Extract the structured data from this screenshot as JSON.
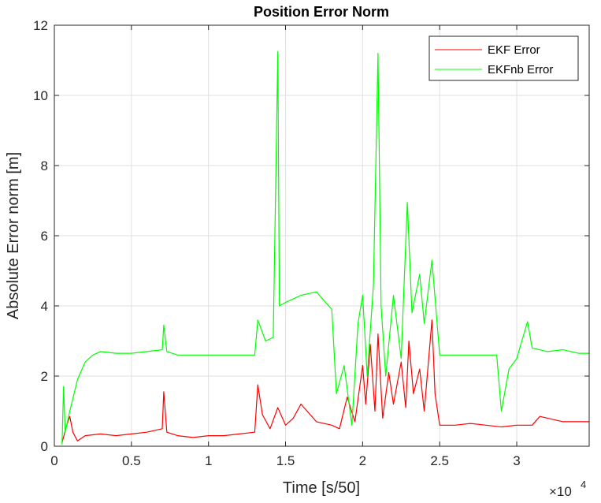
{
  "chart_data": {
    "type": "line",
    "title": "Position Error Norm",
    "xlabel": "Time [s/50]",
    "ylabel": "Absolute Error norm [m]",
    "x_exponent_label": "×10",
    "x_exponent_power": "4",
    "xlim": [
      0,
      34700
    ],
    "ylim": [
      0,
      12
    ],
    "grid": true,
    "legend_position": "top-right",
    "x_ticks": [
      {
        "value": 0,
        "label": "0"
      },
      {
        "value": 5000,
        "label": "0.5"
      },
      {
        "value": 10000,
        "label": "1"
      },
      {
        "value": 15000,
        "label": "1.5"
      },
      {
        "value": 20000,
        "label": "2"
      },
      {
        "value": 25000,
        "label": "2.5"
      },
      {
        "value": 30000,
        "label": "3"
      }
    ],
    "y_ticks": [
      {
        "value": 0,
        "label": "0"
      },
      {
        "value": 2,
        "label": "2"
      },
      {
        "value": 4,
        "label": "4"
      },
      {
        "value": 6,
        "label": "6"
      },
      {
        "value": 8,
        "label": "8"
      },
      {
        "value": 10,
        "label": "10"
      },
      {
        "value": 12,
        "label": "12"
      }
    ],
    "series": [
      {
        "name": "EKF Error",
        "color": "#ff0000",
        "points": [
          [
            500,
            0.1
          ],
          [
            800,
            0.6
          ],
          [
            1000,
            0.85
          ],
          [
            1200,
            0.4
          ],
          [
            1500,
            0.15
          ],
          [
            2000,
            0.3
          ],
          [
            3000,
            0.35
          ],
          [
            4000,
            0.3
          ],
          [
            5000,
            0.35
          ],
          [
            6000,
            0.4
          ],
          [
            7000,
            0.5
          ],
          [
            7100,
            1.55
          ],
          [
            7300,
            0.4
          ],
          [
            8000,
            0.3
          ],
          [
            9000,
            0.25
          ],
          [
            10000,
            0.3
          ],
          [
            11000,
            0.3
          ],
          [
            12000,
            0.35
          ],
          [
            13000,
            0.4
          ],
          [
            13200,
            1.75
          ],
          [
            13500,
            0.9
          ],
          [
            14000,
            0.5
          ],
          [
            14500,
            1.1
          ],
          [
            15000,
            0.6
          ],
          [
            15500,
            0.8
          ],
          [
            16000,
            1.2
          ],
          [
            17000,
            0.7
          ],
          [
            18000,
            0.6
          ],
          [
            18500,
            0.5
          ],
          [
            19000,
            1.4
          ],
          [
            19500,
            0.7
          ],
          [
            20000,
            2.3
          ],
          [
            20200,
            1.2
          ],
          [
            20500,
            2.9
          ],
          [
            20800,
            1.0
          ],
          [
            21000,
            3.2
          ],
          [
            21300,
            0.8
          ],
          [
            21700,
            2.1
          ],
          [
            22000,
            1.2
          ],
          [
            22500,
            2.4
          ],
          [
            22800,
            1.1
          ],
          [
            23000,
            3.0
          ],
          [
            23300,
            1.5
          ],
          [
            23700,
            2.2
          ],
          [
            24000,
            1.0
          ],
          [
            24500,
            3.6
          ],
          [
            24700,
            1.5
          ],
          [
            25000,
            0.6
          ],
          [
            26000,
            0.6
          ],
          [
            27000,
            0.65
          ],
          [
            28000,
            0.6
          ],
          [
            29000,
            0.55
          ],
          [
            30000,
            0.6
          ],
          [
            31000,
            0.6
          ],
          [
            31500,
            0.85
          ],
          [
            32000,
            0.8
          ],
          [
            33000,
            0.7
          ],
          [
            34000,
            0.7
          ],
          [
            34700,
            0.7
          ]
        ]
      },
      {
        "name": "EKFnb Error",
        "color": "#00ff00",
        "points": [
          [
            500,
            0.05
          ],
          [
            600,
            1.7
          ],
          [
            700,
            0.4
          ],
          [
            1000,
            1.0
          ],
          [
            1500,
            1.9
          ],
          [
            2000,
            2.4
          ],
          [
            2500,
            2.6
          ],
          [
            3000,
            2.7
          ],
          [
            4000,
            2.65
          ],
          [
            5000,
            2.65
          ],
          [
            6000,
            2.7
          ],
          [
            7000,
            2.75
          ],
          [
            7100,
            3.45
          ],
          [
            7300,
            2.7
          ],
          [
            8000,
            2.6
          ],
          [
            9000,
            2.6
          ],
          [
            10000,
            2.6
          ],
          [
            11000,
            2.6
          ],
          [
            12000,
            2.6
          ],
          [
            13000,
            2.6
          ],
          [
            13200,
            3.6
          ],
          [
            13700,
            3.0
          ],
          [
            14200,
            3.1
          ],
          [
            14500,
            11.25
          ],
          [
            14600,
            4.0
          ],
          [
            15000,
            4.1
          ],
          [
            16000,
            4.3
          ],
          [
            17000,
            4.4
          ],
          [
            18000,
            3.9
          ],
          [
            18300,
            1.5
          ],
          [
            18800,
            2.3
          ],
          [
            19300,
            0.6
          ],
          [
            19700,
            3.5
          ],
          [
            20000,
            4.3
          ],
          [
            20300,
            2.0
          ],
          [
            20700,
            4.6
          ],
          [
            21000,
            11.2
          ],
          [
            21200,
            4.0
          ],
          [
            21500,
            2.0
          ],
          [
            22000,
            4.3
          ],
          [
            22500,
            2.5
          ],
          [
            22900,
            6.95
          ],
          [
            23200,
            3.8
          ],
          [
            23700,
            4.9
          ],
          [
            24000,
            3.5
          ],
          [
            24500,
            5.3
          ],
          [
            25000,
            2.6
          ],
          [
            26000,
            2.6
          ],
          [
            27000,
            2.6
          ],
          [
            28000,
            2.6
          ],
          [
            28700,
            2.6
          ],
          [
            29000,
            1.0
          ],
          [
            29500,
            2.2
          ],
          [
            30000,
            2.5
          ],
          [
            30700,
            3.55
          ],
          [
            31000,
            2.8
          ],
          [
            32000,
            2.7
          ],
          [
            33000,
            2.75
          ],
          [
            34000,
            2.65
          ],
          [
            34700,
            2.65
          ]
        ]
      }
    ]
  }
}
